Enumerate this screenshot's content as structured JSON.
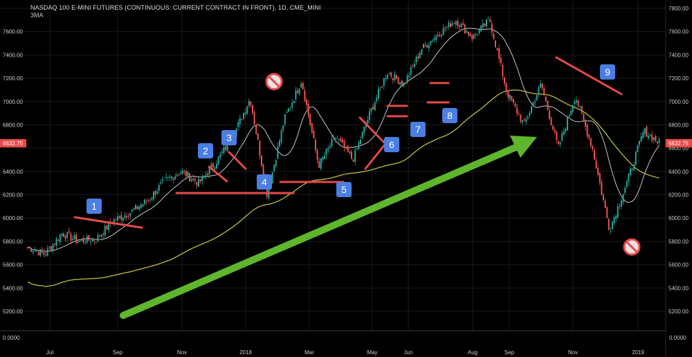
{
  "header": {
    "title": "NASDAQ 100 E-MINI FUTURES (CONTINUOUS: CURRENT CONTRACT IN FRONT), 1D, CME_MINI",
    "indicator": "3MA"
  },
  "colors": {
    "background": "#000000",
    "grid": "#1a1a1a",
    "candle_up": "#26a69a",
    "candle_down": "#ef5350",
    "ma_fast": "#c8c8c8",
    "ma_slow": "#b5b334",
    "annotation_red": "#e84a4a",
    "badge_blue": "#4a7ee0",
    "arrow_green": "#5fb52c",
    "price_tag": "#e84a4a"
  },
  "chart_data": {
    "type": "candlestick",
    "title": "NASDAQ 100 E-MINI FUTURES (CONTINUOUS: CURRENT CONTRACT IN FRONT), 1D, CME_MINI",
    "ylim": [
      5000,
      7850
    ],
    "y_ticks": [
      "7800.00",
      "7600.00",
      "7400.00",
      "7200.00",
      "7000.00",
      "6800.00",
      "6600.00",
      "6400.00",
      "6200.00",
      "6000.00",
      "5800.00",
      "5600.00",
      "5400.00",
      "5200.00"
    ],
    "y_ticks_left": [
      "7600.00",
      "7400.00",
      "7200.00",
      "7000.00",
      "6800.00",
      "6600.00",
      "6400.00",
      "6200.00",
      "6000.00",
      "5800.00",
      "5600.00",
      "5400.00",
      "5200.00"
    ],
    "x_ticks": [
      "Jul",
      "Sep",
      "Nov",
      "2018",
      "Mar",
      "May",
      "Jun",
      "Aug",
      "Sep",
      "Nov",
      "2019"
    ],
    "last_price": "6632.75",
    "oscillator_label": "0.0000",
    "price_path": [
      [
        "Jun 20",
        5750
      ],
      [
        "Jul 5",
        5690
      ],
      [
        "Jul 20",
        5870
      ],
      [
        "Aug 10",
        5800
      ],
      [
        "Aug 25",
        5820
      ],
      [
        "Sep 15",
        5980
      ],
      [
        "Oct 5",
        6050
      ],
      [
        "Oct 25",
        6150
      ],
      [
        "Nov 15",
        6320
      ],
      [
        "Nov 29",
        6400
      ],
      [
        "Dec 10",
        6300
      ],
      [
        "Dec 25",
        6480
      ],
      [
        "2018 Jan 10",
        6700
      ],
      [
        "Jan 26",
        7030
      ],
      [
        "Feb 8",
        6200
      ],
      [
        "Feb 26",
        6850
      ],
      [
        "Mar 12",
        7180
      ],
      [
        "Apr 2",
        6450
      ],
      [
        "Apr 16",
        6700
      ],
      [
        "May 3",
        6500
      ],
      [
        "May 20",
        6900
      ],
      [
        "Jun 20",
        7250
      ],
      [
        "Jul 10",
        7150
      ],
      [
        "Jul 25",
        7450
      ],
      [
        "Aug 10",
        7580
      ],
      [
        "Aug 30",
        7700
      ],
      [
        "Sep 15",
        7550
      ],
      [
        "Oct 1",
        7700
      ],
      [
        "Oct 12",
        7080
      ],
      [
        "Oct 25",
        6800
      ],
      [
        "Nov 7",
        7150
      ],
      [
        "Nov 20",
        6600
      ],
      [
        "Dec 3",
        7050
      ],
      [
        "Dec 14",
        6600
      ],
      [
        "Dec 24",
        5900
      ],
      [
        "2019 Jan 7",
        6300
      ],
      [
        "Jan 20",
        6750
      ],
      [
        "Jan 28",
        6632.75
      ]
    ],
    "series": [
      {
        "name": "3MA",
        "values": []
      }
    ],
    "annotations": {
      "badges": [
        "1",
        "2",
        "3",
        "4",
        "5",
        "6",
        "7",
        "8",
        "9"
      ],
      "no_signs": 2,
      "trend_arrow": "up"
    }
  }
}
